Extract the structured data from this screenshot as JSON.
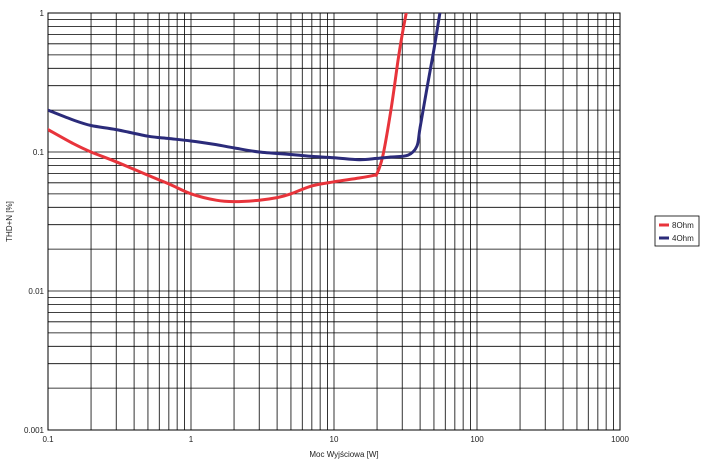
{
  "chart_data": {
    "type": "line",
    "xlabel": "Moc Wyjściowa [W]",
    "ylabel": "THD+N [%]",
    "x_scale": "log",
    "y_scale": "log",
    "xlim": [
      0.1,
      1000
    ],
    "ylim": [
      0.001,
      1
    ],
    "grid": true,
    "legend_position": "right",
    "x_ticks": [
      "0.1",
      "1",
      "10",
      "100",
      "1000"
    ],
    "y_ticks": [
      "0.001",
      "0.01",
      "0.1",
      "1"
    ],
    "series": [
      {
        "name": "8Ohm",
        "color": "#e8343b",
        "points": [
          [
            0.1,
            0.145
          ],
          [
            0.15,
            0.115
          ],
          [
            0.2,
            0.1
          ],
          [
            0.3,
            0.085
          ],
          [
            0.5,
            0.068
          ],
          [
            0.7,
            0.059
          ],
          [
            1.0,
            0.05
          ],
          [
            1.5,
            0.045
          ],
          [
            2.0,
            0.044
          ],
          [
            3.0,
            0.045
          ],
          [
            4.0,
            0.047
          ],
          [
            5.0,
            0.05
          ],
          [
            7.0,
            0.057
          ],
          [
            10.0,
            0.061
          ],
          [
            15.0,
            0.065
          ],
          [
            19.0,
            0.068
          ],
          [
            20.0,
            0.07
          ],
          [
            22.0,
            0.095
          ],
          [
            25.0,
            0.2
          ],
          [
            28.0,
            0.45
          ],
          [
            30.0,
            0.7
          ],
          [
            32.0,
            1.0
          ]
        ]
      },
      {
        "name": "4Ohm",
        "color": "#2b2b7a",
        "points": [
          [
            0.1,
            0.2
          ],
          [
            0.15,
            0.17
          ],
          [
            0.2,
            0.155
          ],
          [
            0.3,
            0.145
          ],
          [
            0.5,
            0.13
          ],
          [
            0.7,
            0.125
          ],
          [
            1.0,
            0.12
          ],
          [
            1.5,
            0.113
          ],
          [
            2.0,
            0.107
          ],
          [
            3.0,
            0.1
          ],
          [
            5.0,
            0.096
          ],
          [
            7.0,
            0.093
          ],
          [
            10.0,
            0.091
          ],
          [
            15.0,
            0.088
          ],
          [
            20.0,
            0.09
          ],
          [
            25.0,
            0.092
          ],
          [
            33.0,
            0.095
          ],
          [
            38.0,
            0.11
          ],
          [
            40.0,
            0.15
          ],
          [
            45.0,
            0.3
          ],
          [
            50.0,
            0.55
          ],
          [
            55.0,
            1.0
          ]
        ]
      }
    ]
  }
}
